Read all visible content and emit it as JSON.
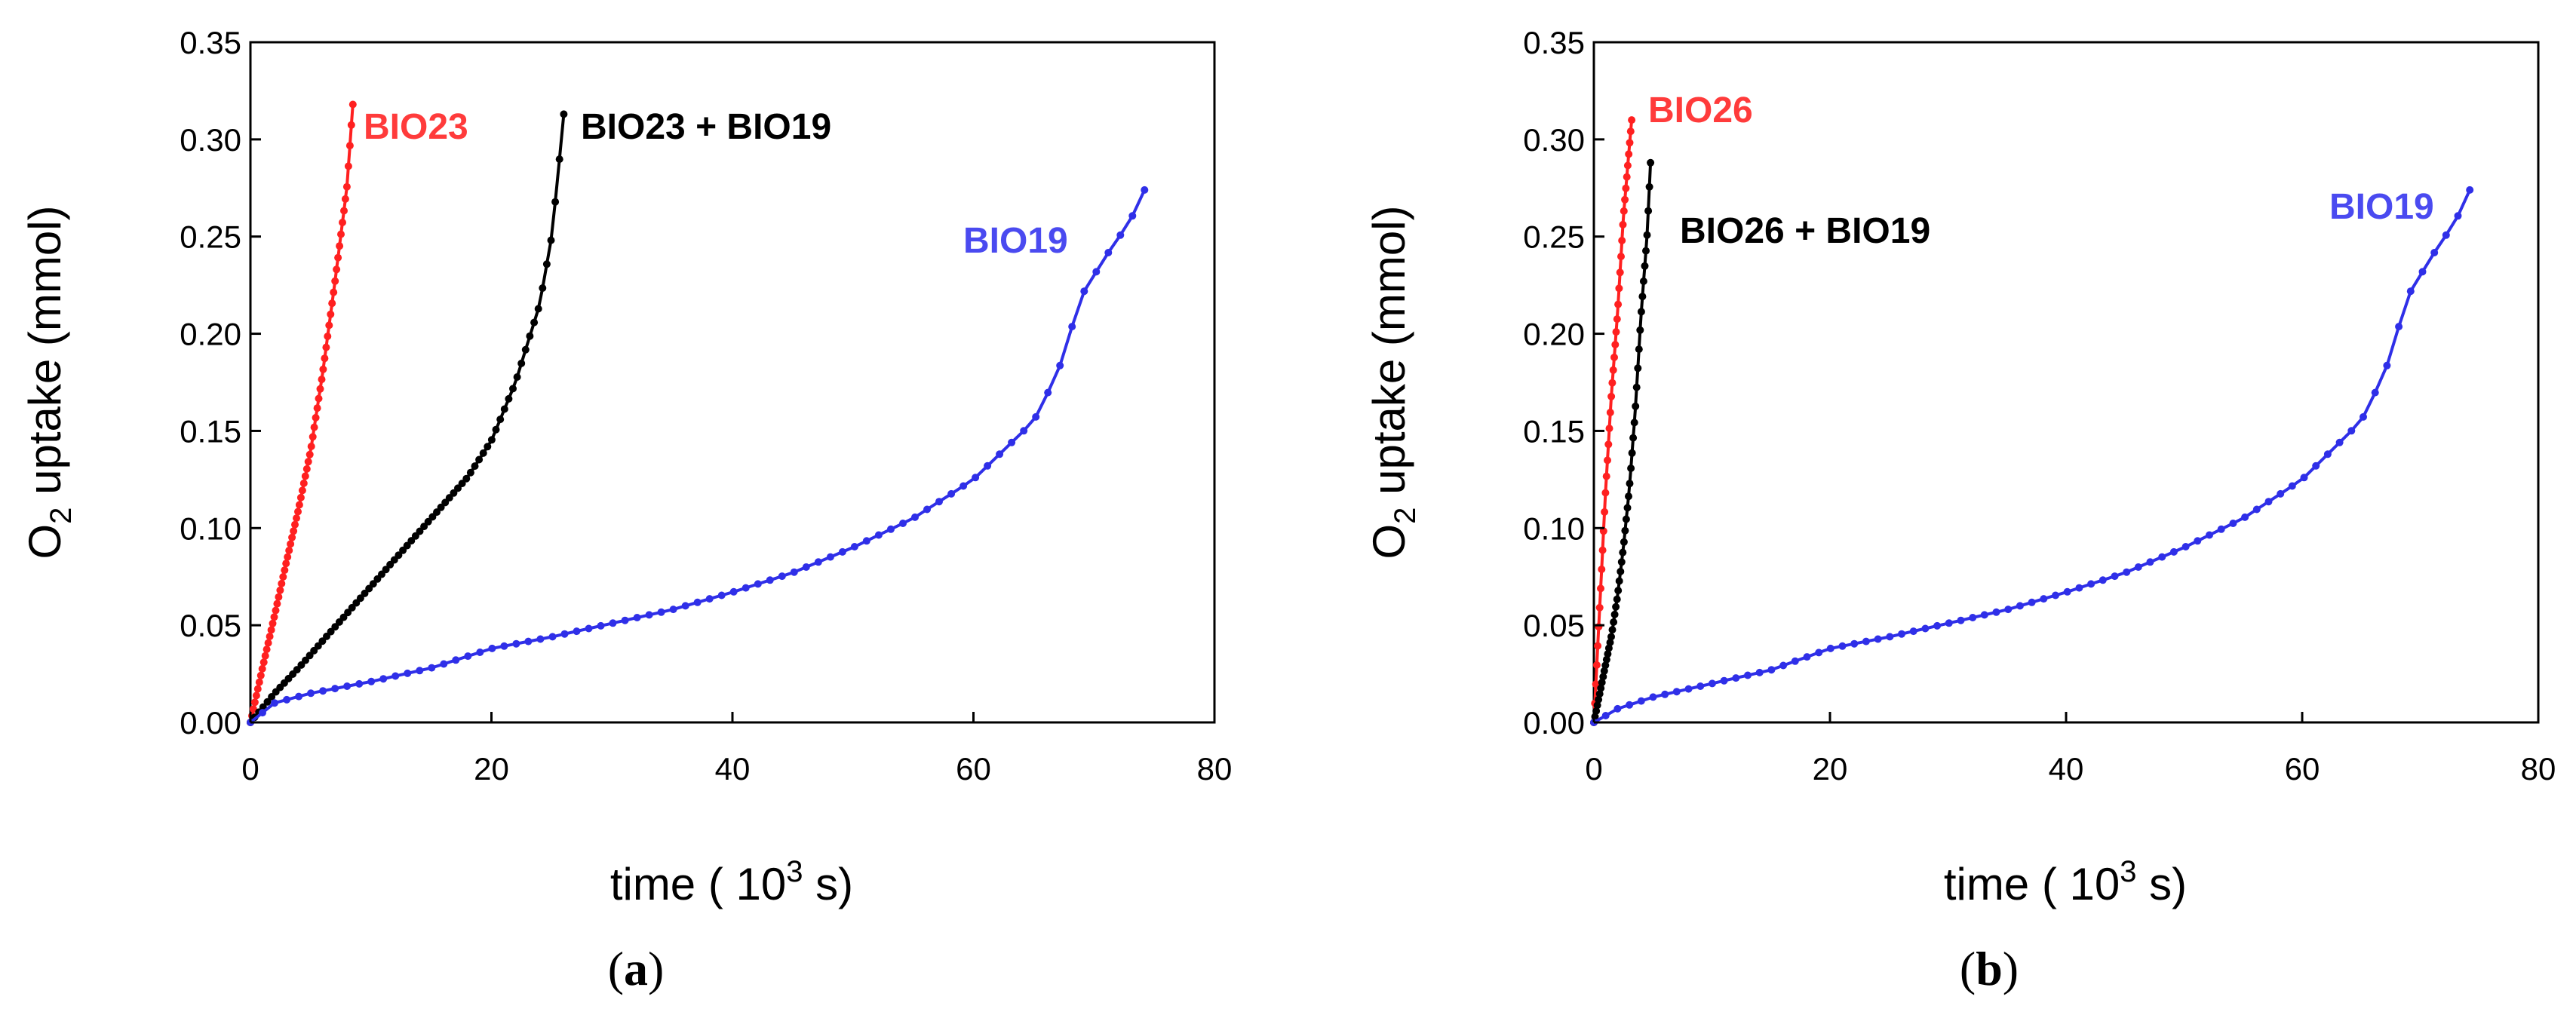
{
  "chart_data": [
    {
      "type": "line",
      "panel_label": "a",
      "xlabel_prefix": "time ( 10",
      "xlabel_sup": "3",
      "xlabel_suffix": " s)",
      "ylabel_prefix": "O",
      "ylabel_sub": "2",
      "ylabel_suffix": " uptake (mmol)",
      "xlim": [
        0,
        80
      ],
      "ylim": [
        0,
        0.35
      ],
      "xticks": [
        "0",
        "20",
        "40",
        "60",
        "80"
      ],
      "yticks": [
        "0.00",
        "0.05",
        "0.10",
        "0.15",
        "0.20",
        "0.25",
        "0.30",
        "0.35"
      ],
      "grid": false,
      "series": [
        {
          "name": "BIO23",
          "color": "#ff2020",
          "label_color": "#ff3b3b",
          "point_count": 70,
          "points": [
            [
              0,
              0
            ],
            [
              1,
              0.028
            ],
            [
              2,
              0.055
            ],
            [
              3,
              0.083
            ],
            [
              4,
              0.11
            ],
            [
              5,
              0.14
            ],
            [
              6,
              0.18
            ],
            [
              7,
              0.226
            ],
            [
              8,
              0.275
            ],
            [
              8.5,
              0.318
            ]
          ]
        },
        {
          "name": "BIO23 + BIO19",
          "color": "#000000",
          "label_color": "#000000",
          "point_count": 75,
          "points": [
            [
              0,
              0
            ],
            [
              2,
              0.015
            ],
            [
              4,
              0.028
            ],
            [
              6,
              0.042
            ],
            [
              8,
              0.056
            ],
            [
              10,
              0.07
            ],
            [
              12,
              0.084
            ],
            [
              14,
              0.098
            ],
            [
              16,
              0.112
            ],
            [
              18,
              0.126
            ],
            [
              20,
              0.145
            ],
            [
              22,
              0.175
            ],
            [
              24,
              0.215
            ],
            [
              25,
              0.25
            ],
            [
              25.5,
              0.28
            ],
            [
              26,
              0.313
            ]
          ]
        },
        {
          "name": "BIO19",
          "color": "#2f2fe8",
          "label_color": "#4a4af0",
          "point_count": 75,
          "points": [
            [
              0,
              0
            ],
            [
              2,
              0.01
            ],
            [
              5,
              0.015
            ],
            [
              10,
              0.021
            ],
            [
              15,
              0.028
            ],
            [
              20,
              0.038
            ],
            [
              25,
              0.044
            ],
            [
              30,
              0.051
            ],
            [
              35,
              0.058
            ],
            [
              40,
              0.067
            ],
            [
              45,
              0.077
            ],
            [
              50,
              0.09
            ],
            [
              55,
              0.105
            ],
            [
              60,
              0.125
            ],
            [
              65,
              0.155
            ],
            [
              67,
              0.18
            ],
            [
              69,
              0.22
            ],
            [
              71,
              0.24
            ],
            [
              73,
              0.258
            ],
            [
              74.2,
              0.274
            ]
          ]
        }
      ]
    },
    {
      "type": "line",
      "panel_label": "b",
      "xlabel_prefix": "time ( 10",
      "xlabel_sup": "3",
      "xlabel_suffix": " s)",
      "ylabel_prefix": "O",
      "ylabel_sub": "2",
      "ylabel_suffix": " uptake (mmol)",
      "xlim": [
        0,
        80
      ],
      "ylim": [
        0,
        0.35
      ],
      "xticks": [
        "0",
        "20",
        "40",
        "60",
        "80"
      ],
      "yticks": [
        "0.00",
        "0.05",
        "0.10",
        "0.15",
        "0.20",
        "0.25",
        "0.30",
        "0.35"
      ],
      "grid": false,
      "series": [
        {
          "name": "BIO26",
          "color": "#ff2020",
          "label_color": "#ff3b3b",
          "point_count": 40,
          "points": [
            [
              0,
              0
            ],
            [
              0.5,
              0.06
            ],
            [
              1,
              0.12
            ],
            [
              1.5,
              0.17
            ],
            [
              2,
              0.21
            ],
            [
              2.5,
              0.26
            ],
            [
              3.2,
              0.31
            ]
          ]
        },
        {
          "name": "BIO26 + BIO19",
          "color": "#000000",
          "label_color": "#000000",
          "point_count": 50,
          "points": [
            [
              0,
              0
            ],
            [
              0.5,
              0.015
            ],
            [
              1,
              0.03
            ],
            [
              1.5,
              0.045
            ],
            [
              2,
              0.065
            ],
            [
              2.5,
              0.09
            ],
            [
              3,
              0.12
            ],
            [
              3.5,
              0.16
            ],
            [
              4,
              0.21
            ],
            [
              4.5,
              0.25
            ],
            [
              4.8,
              0.288
            ]
          ]
        },
        {
          "name": "BIO19",
          "color": "#2f2fe8",
          "label_color": "#4a4af0",
          "point_count": 75,
          "points": [
            [
              0,
              0
            ],
            [
              2,
              0.007
            ],
            [
              5,
              0.013
            ],
            [
              10,
              0.02
            ],
            [
              15,
              0.027
            ],
            [
              20,
              0.038
            ],
            [
              25,
              0.044
            ],
            [
              30,
              0.051
            ],
            [
              35,
              0.058
            ],
            [
              40,
              0.067
            ],
            [
              45,
              0.077
            ],
            [
              50,
              0.09
            ],
            [
              55,
              0.105
            ],
            [
              60,
              0.125
            ],
            [
              65,
              0.155
            ],
            [
              67,
              0.18
            ],
            [
              69,
              0.22
            ],
            [
              71,
              0.24
            ],
            [
              73,
              0.258
            ],
            [
              74.2,
              0.274
            ]
          ]
        }
      ]
    }
  ]
}
